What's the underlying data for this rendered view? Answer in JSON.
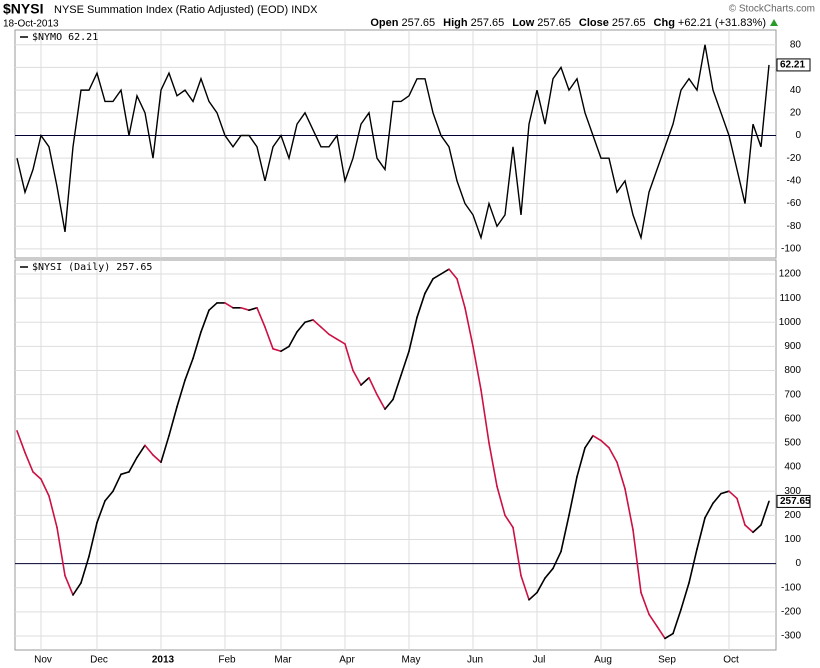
{
  "header": {
    "symbol": "$NYSI",
    "name": "NYSE Summation Index (Ratio Adjusted) (EOD) INDX",
    "date": "18-Oct-2013",
    "quote": [
      {
        "label": "Open",
        "value": "257.65"
      },
      {
        "label": "High",
        "value": "257.65"
      },
      {
        "label": "Low",
        "value": "257.65"
      },
      {
        "label": "Close",
        "value": "257.65"
      },
      {
        "label": "Chg",
        "value": "+62.21 (+31.83%)"
      }
    ],
    "credit": "© StockCharts.com"
  },
  "chart_data": [
    {
      "type": "line",
      "ylim": [
        -108,
        93
      ],
      "yticks": [
        80,
        60,
        40,
        20,
        0,
        -20,
        -40,
        -60,
        -80,
        -100
      ],
      "grid": true,
      "zero_line": true,
      "series": [
        {
          "name": "$NYMO",
          "color": "#000000",
          "values": [
            -20,
            -50,
            -30,
            0,
            -10,
            -45,
            -85,
            -10,
            40,
            40,
            55,
            30,
            30,
            40,
            0,
            35,
            20,
            -20,
            40,
            55,
            35,
            40,
            30,
            50,
            30,
            20,
            0,
            -10,
            0,
            0,
            -10,
            -40,
            -10,
            0,
            -20,
            10,
            20,
            5,
            -10,
            -10,
            0,
            -40,
            -20,
            10,
            20,
            -20,
            -30,
            30,
            30,
            35,
            50,
            50,
            20,
            0,
            -10,
            -40,
            -60,
            -70,
            -90,
            -60,
            -80,
            -70,
            -10,
            -70,
            10,
            40,
            10,
            50,
            60,
            40,
            50,
            20,
            0,
            -20,
            -20,
            -50,
            -40,
            -70,
            -90,
            -50,
            -30,
            -10,
            10,
            40,
            50,
            40,
            80,
            40,
            20,
            0,
            -30,
            -60,
            10,
            -10,
            62.21
          ]
        }
      ]
    },
    {
      "type": "line",
      "ylim": [
        -358,
        1258
      ],
      "yticks": [
        1200,
        1100,
        1000,
        900,
        800,
        700,
        600,
        500,
        400,
        300,
        200,
        100,
        0,
        -100,
        -200,
        -300
      ],
      "grid": true,
      "zero_line": true,
      "categories": [
        null,
        null,
        null,
        "Nov",
        null,
        null,
        null,
        null,
        null,
        null,
        "Dec",
        null,
        null,
        null,
        null,
        null,
        null,
        null,
        "2013",
        null,
        null,
        null,
        null,
        null,
        null,
        null,
        "Feb",
        null,
        null,
        null,
        null,
        null,
        null,
        "Mar",
        null,
        null,
        null,
        null,
        null,
        null,
        null,
        "Apr",
        null,
        null,
        null,
        null,
        null,
        null,
        null,
        "May",
        null,
        null,
        null,
        null,
        null,
        null,
        null,
        "Jun",
        null,
        null,
        null,
        null,
        null,
        null,
        null,
        "Jul",
        null,
        null,
        null,
        null,
        null,
        null,
        null,
        "Aug",
        null,
        null,
        null,
        null,
        null,
        null,
        null,
        "Sep",
        null,
        null,
        null,
        null,
        null,
        null,
        null,
        "Oct",
        null,
        null,
        null,
        null,
        null
      ],
      "series": [
        {
          "name": "$NYSI (Daily)",
          "color": "#000000",
          "down_color": "#cc1144",
          "values": [
            550,
            460,
            380,
            350,
            280,
            150,
            -50,
            -130,
            -80,
            30,
            170,
            260,
            300,
            370,
            380,
            440,
            490,
            450,
            420,
            530,
            650,
            760,
            850,
            960,
            1050,
            1080,
            1080,
            1060,
            1060,
            1050,
            1060,
            980,
            890,
            880,
            900,
            960,
            1000,
            1010,
            980,
            950,
            930,
            910,
            800,
            740,
            770,
            700,
            640,
            680,
            780,
            880,
            1020,
            1120,
            1180,
            1200,
            1220,
            1180,
            1060,
            900,
            720,
            500,
            320,
            200,
            150,
            -50,
            -150,
            -120,
            -60,
            -20,
            50,
            200,
            360,
            480,
            530,
            510,
            480,
            420,
            310,
            140,
            -120,
            -210,
            -260,
            -310,
            -290,
            -190,
            -80,
            60,
            190,
            250,
            290,
            300,
            270,
            160,
            130,
            160,
            257.65
          ]
        }
      ]
    }
  ]
}
